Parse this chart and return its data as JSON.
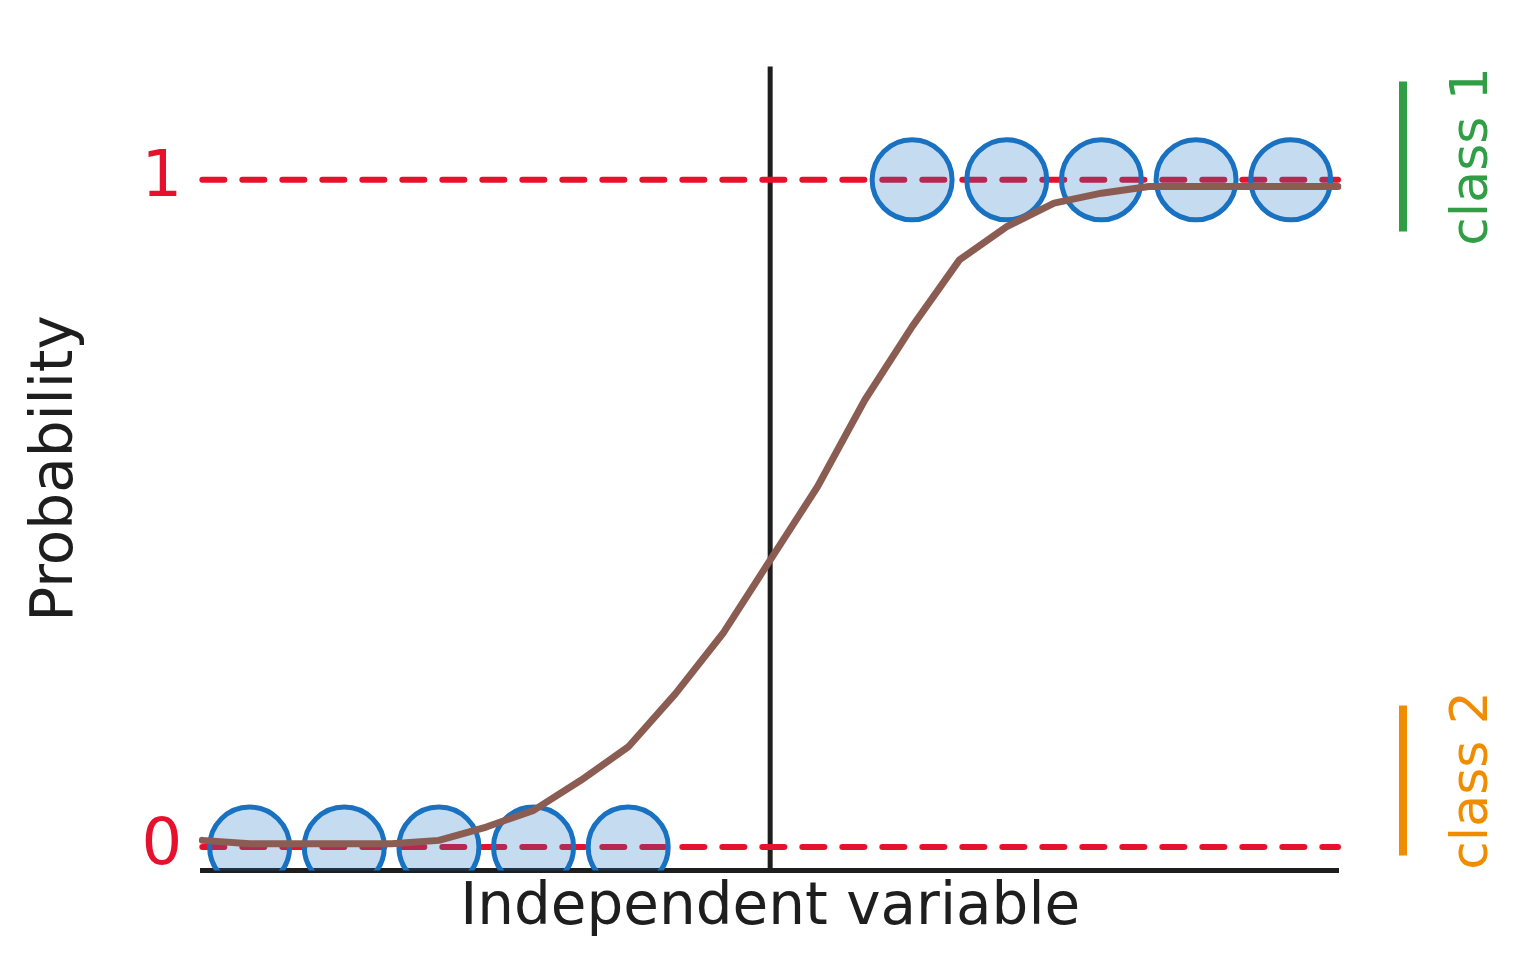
{
  "chart_data": {
    "type": "line",
    "xlabel": "Independent variable",
    "ylabel": "Probability",
    "categories": [
      null,
      null,
      null,
      null,
      null,
      null,
      null,
      null,
      null,
      null,
      null,
      null,
      null,
      null,
      null,
      null,
      null,
      null,
      null,
      null,
      null,
      null,
      null,
      null,
      null
    ],
    "ylim": [
      -0.035,
      1.17
    ],
    "yticks": [
      0,
      1
    ],
    "tick_labels": "y",
    "grid": false,
    "legend": false,
    "series": [
      {
        "type": "scatter",
        "color": "#1971c2",
        "marker": "circle",
        "values": [
          null,
          0,
          null,
          0,
          null,
          0,
          null,
          0,
          null,
          0,
          null,
          null,
          null,
          null,
          null,
          1,
          null,
          1,
          null,
          1,
          null,
          1,
          null,
          1,
          null
        ]
      },
      {
        "type": "line",
        "color": "#8b5d52",
        "marker": "none",
        "values": [
          0.01,
          0.005,
          0.005,
          0.005,
          0.005,
          0.01,
          0.03,
          0.055,
          0.1,
          0.15,
          0.23,
          0.32,
          0.43,
          0.54,
          0.67,
          0.78,
          0.88,
          0.93,
          0.965,
          0.98,
          0.99,
          0.99,
          0.99,
          0.99,
          0.99
        ]
      }
    ],
    "ref_lines": [
      {
        "axis": "y",
        "value": 1,
        "color": "#e8112d",
        "line_style": "dashed"
      },
      {
        "axis": "y",
        "value": 0,
        "color": "#e8112d",
        "line_style": "dashed"
      }
    ],
    "annotations": [
      "class 1",
      "class 2"
    ]
  }
}
